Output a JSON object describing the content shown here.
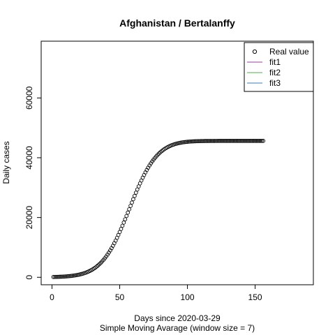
{
  "chart_data": {
    "type": "scatter",
    "title": "Afghanistan / Bertalanffy",
    "xlabel": "Days since 2020-03-29",
    "xlabel2": "Simple Moving Avarage (window size = 7)",
    "ylabel": "Daily cases",
    "xlim": [
      -8,
      193
    ],
    "ylim": [
      -2500,
      79000
    ],
    "xticks": [
      0,
      50,
      100,
      150
    ],
    "yticks": [
      0,
      20000,
      40000,
      60000
    ],
    "grid": false,
    "legend_position": "top-right",
    "legend": [
      {
        "label": "Real value",
        "kind": "point",
        "color": "#000000"
      },
      {
        "label": "fit1",
        "kind": "line",
        "color": "#9B3B9B"
      },
      {
        "label": "fit2",
        "kind": "line",
        "color": "#4DAF4A"
      },
      {
        "label": "fit3",
        "kind": "line",
        "color": "#377EB8"
      }
    ],
    "series": [
      {
        "name": "Real value",
        "x": [
          1,
          2,
          3,
          4,
          5,
          6,
          7,
          8,
          9,
          10,
          11,
          12,
          13,
          14,
          15,
          16,
          17,
          18,
          19,
          20,
          21,
          22,
          23,
          24,
          25,
          26,
          27,
          28,
          29,
          30,
          31,
          32,
          33,
          34,
          35,
          36,
          37,
          38,
          39,
          40,
          41,
          42,
          43,
          44,
          45,
          46,
          47,
          48,
          49,
          50,
          51,
          52,
          53,
          54,
          55,
          56,
          57,
          58,
          59,
          60,
          61,
          62,
          63,
          64,
          65,
          66,
          67,
          68,
          69,
          70,
          71,
          72,
          73,
          74,
          75,
          76,
          77,
          78,
          79,
          80,
          81,
          82,
          83,
          84,
          85,
          86,
          87,
          88,
          89,
          90,
          91,
          92,
          93,
          94,
          95,
          96,
          97,
          98,
          99,
          100,
          101,
          102,
          103,
          104,
          105,
          106,
          107,
          108,
          109,
          110,
          111,
          112,
          113,
          114,
          115,
          116,
          117,
          118,
          119,
          120,
          121,
          122,
          123,
          124,
          125,
          126,
          127,
          128,
          129,
          130,
          131,
          132,
          133,
          134,
          135,
          136,
          137,
          138,
          139,
          140,
          141,
          142,
          143,
          144,
          145,
          146,
          147,
          148,
          149,
          150,
          151,
          152,
          153,
          154,
          155,
          156
        ],
        "y": [
          100,
          112,
          126,
          141,
          158,
          178,
          200,
          224,
          252,
          283,
          318,
          357,
          400,
          449,
          504,
          565,
          634,
          711,
          796,
          892,
          998,
          1117,
          1248,
          1394,
          1556,
          1735,
          1933,
          2151,
          2390,
          2653,
          2941,
          3256,
          3599,
          3973,
          4379,
          4820,
          5296,
          5810,
          6363,
          6956,
          7590,
          8266,
          8985,
          9747,
          10550,
          11395,
          12279,
          13202,
          14162,
          15155,
          16179,
          17231,
          18306,
          19401,
          20511,
          21632,
          22759,
          23887,
          25012,
          26127,
          27229,
          28313,
          29375,
          30411,
          31417,
          32391,
          33329,
          34229,
          35090,
          35910,
          36688,
          37423,
          38116,
          38767,
          39376,
          39944,
          40473,
          40963,
          41416,
          41834,
          42218,
          42570,
          42892,
          43186,
          43453,
          43695,
          43915,
          44113,
          44291,
          44452,
          44595,
          44723,
          44837,
          44939,
          45029,
          45109,
          45179,
          45241,
          45295,
          45342,
          45384,
          45420,
          45451,
          45478,
          45501,
          45521,
          45538,
          45553,
          45565,
          45576,
          45585,
          45593,
          45599,
          45605,
          45609,
          45613,
          45616,
          45619,
          45621,
          45623,
          45625,
          45626,
          45627,
          45628,
          45629,
          45629,
          45630,
          45630,
          45630,
          45631,
          45631,
          45631,
          45631,
          45631,
          45631,
          45632,
          45632,
          45632,
          45632,
          45632,
          45632,
          45632,
          45632,
          45632,
          45632,
          45632,
          45632,
          45632,
          45632,
          45632,
          45632,
          45632,
          45632,
          45632,
          45632,
          45632
        ]
      }
    ]
  }
}
